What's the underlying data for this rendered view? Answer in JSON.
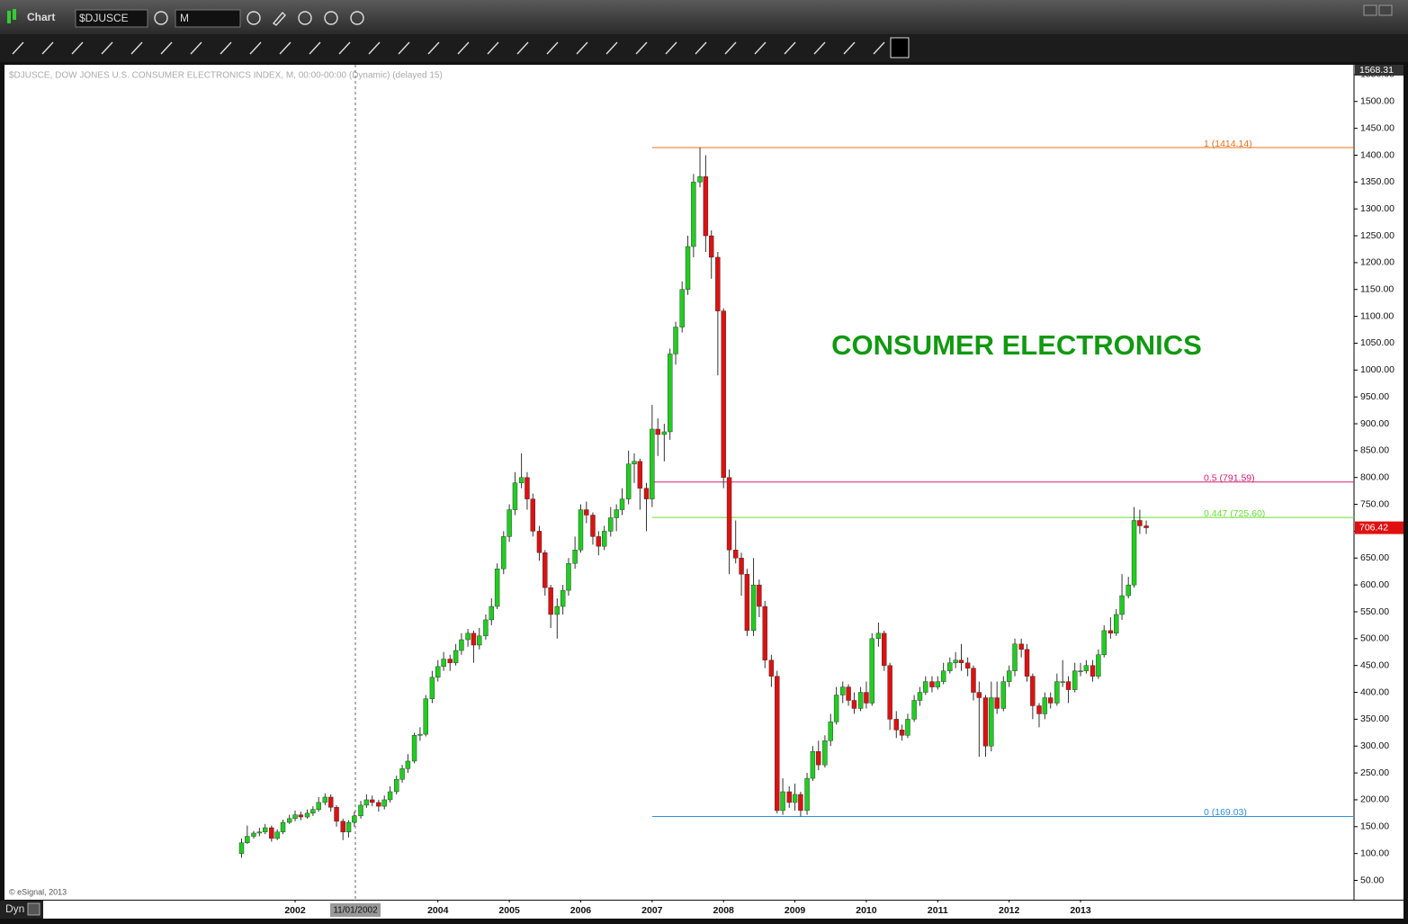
{
  "window": {
    "title": "Chart",
    "symbol": "$DJUSCE",
    "interval": "M",
    "mode": "Dyn"
  },
  "chart_data": {
    "type": "candlestick",
    "subtitle": "$DJUSCE, DOW JONES U.S. CONSUMER ELECTRONICS INDEX, M, 00:00-00:00 (Dynamic) (delayed 15)",
    "annotation": "CONSUMER ELECTRONICS",
    "credit": "© eSignal, 2013",
    "cursor_label": "11/01/2002",
    "up_color": "#22cc22",
    "down_color": "#dd1111",
    "xlim": [
      1997.93,
      2016.83
    ],
    "xticks": [
      2002,
      2004,
      2005,
      2006,
      2007,
      2008,
      2009,
      2010,
      2011,
      2012,
      2013
    ],
    "ylim": [
      14,
      1568.31
    ],
    "yticks": [
      {
        "value": 50,
        "label": "50.00"
      },
      {
        "value": 100,
        "label": "100.00"
      },
      {
        "value": 150,
        "label": "150.00"
      },
      {
        "value": 200,
        "label": "200.00"
      },
      {
        "value": 250,
        "label": "250.00"
      },
      {
        "value": 300,
        "label": "300.00"
      },
      {
        "value": 350,
        "label": "350.00"
      },
      {
        "value": 400,
        "label": "400.00"
      },
      {
        "value": 450,
        "label": "450.00"
      },
      {
        "value": 500,
        "label": "500.00"
      },
      {
        "value": 550,
        "label": "550.00"
      },
      {
        "value": 600,
        "label": "600.00"
      },
      {
        "value": 650,
        "label": "650.00"
      },
      {
        "value": 700,
        "label": "700.00"
      },
      {
        "value": 750,
        "label": "750.00"
      },
      {
        "value": 800,
        "label": "800.00"
      },
      {
        "value": 850,
        "label": "850.00"
      },
      {
        "value": 900,
        "label": "900.00"
      },
      {
        "value": 950,
        "label": "950.00"
      },
      {
        "value": 1000,
        "label": "1000.00"
      },
      {
        "value": 1050,
        "label": "1050.00"
      },
      {
        "value": 1100,
        "label": "1100.00"
      },
      {
        "value": 1150,
        "label": "1150.00"
      },
      {
        "value": 1200,
        "label": "1200.00"
      },
      {
        "value": 1250,
        "label": "1250.00"
      },
      {
        "value": 1300,
        "label": "1300.00"
      },
      {
        "value": 1350,
        "label": "1350.00"
      },
      {
        "value": 1400,
        "label": "1400.00"
      },
      {
        "value": 1450,
        "label": "1450.00"
      },
      {
        "value": 1500,
        "label": "1500.00"
      },
      {
        "value": 1550,
        "label": "1550.00"
      }
    ],
    "levels": [
      {
        "label": "1 (1414.14)",
        "value": 1414.14,
        "color": "#e8701a"
      },
      {
        "label": "0.5 (791.59)",
        "value": 791.59,
        "color": "#d4206e"
      },
      {
        "label": "0.447 (725.60)",
        "value": 725.6,
        "color": "#66dd33"
      },
      {
        "label": "0 (169.03)",
        "value": 169.03,
        "color": "#2f8fd8"
      }
    ],
    "x": [
      2001.25,
      2001.33,
      2001.42,
      2001.5,
      2001.58,
      2001.67,
      2001.75,
      2001.83,
      2001.92,
      2002,
      2002.08,
      2002.17,
      2002.25,
      2002.33,
      2002.42,
      2002.5,
      2002.58,
      2002.67,
      2002.75,
      2002.83,
      2002.92,
      2003,
      2003.08,
      2003.17,
      2003.25,
      2003.33,
      2003.42,
      2003.5,
      2003.58,
      2003.67,
      2003.75,
      2003.83,
      2003.92,
      2004,
      2004.08,
      2004.17,
      2004.25,
      2004.33,
      2004.42,
      2004.5,
      2004.58,
      2004.67,
      2004.75,
      2004.83,
      2004.92,
      2005,
      2005.08,
      2005.17,
      2005.25,
      2005.33,
      2005.42,
      2005.5,
      2005.58,
      2005.67,
      2005.75,
      2005.83,
      2005.92,
      2006,
      2006.08,
      2006.17,
      2006.25,
      2006.33,
      2006.42,
      2006.5,
      2006.58,
      2006.67,
      2006.75,
      2006.83,
      2006.92,
      2007,
      2007.08,
      2007.17,
      2007.25,
      2007.33,
      2007.42,
      2007.5,
      2007.58,
      2007.67,
      2007.75,
      2007.83,
      2007.92,
      2008,
      2008.08,
      2008.17,
      2008.25,
      2008.33,
      2008.42,
      2008.5,
      2008.58,
      2008.67,
      2008.75,
      2008.83,
      2008.92,
      2009,
      2009.08,
      2009.17,
      2009.25,
      2009.33,
      2009.42,
      2009.5,
      2009.58,
      2009.67,
      2009.75,
      2009.83,
      2009.92,
      2010,
      2010.08,
      2010.17,
      2010.25,
      2010.33,
      2010.42,
      2010.5,
      2010.58,
      2010.67,
      2010.75,
      2010.83,
      2010.92,
      2011,
      2011.08,
      2011.17,
      2011.25,
      2011.33,
      2011.42,
      2011.5,
      2011.58,
      2011.67,
      2011.75,
      2011.83,
      2011.92,
      2012,
      2012.08,
      2012.17,
      2012.25,
      2012.33,
      2012.42,
      2012.5,
      2012.58,
      2012.67,
      2012.75,
      2012.83,
      2012.92,
      2013,
      2013.08,
      2013.17,
      2013.25,
      2013.33,
      2013.42,
      2013.5,
      2013.58,
      2013.67,
      2013.75,
      2013.83,
      2013.92
    ],
    "open": [
      100,
      120,
      132,
      138,
      140,
      148,
      128,
      140,
      158,
      165,
      172,
      168,
      175,
      182,
      195,
      205,
      186,
      160,
      140,
      158,
      170,
      190,
      200,
      195,
      188,
      200,
      215,
      238,
      258,
      272,
      320,
      322,
      388,
      428,
      448,
      462,
      455,
      478,
      498,
      510,
      488,
      505,
      535,
      560,
      630,
      690,
      740,
      790,
      800,
      760,
      700,
      660,
      595,
      545,
      560,
      590,
      640,
      665,
      740,
      730,
      690,
      672,
      700,
      725,
      740,
      760,
      825,
      830,
      780,
      760,
      890,
      880,
      885,
      1030,
      1080,
      1150,
      1230,
      1350,
      1360,
      1250,
      1210,
      1110,
      800,
      665,
      650,
      620,
      515,
      600,
      560,
      460,
      430,
      180,
      215,
      195,
      210,
      180,
      240,
      290,
      265,
      310,
      345,
      395,
      410,
      385,
      370,
      400,
      380,
      500,
      510,
      450,
      350,
      330,
      320,
      350,
      385,
      400,
      420,
      410,
      420,
      440,
      455,
      460,
      455,
      445,
      400,
      390,
      300,
      390,
      370,
      420,
      440,
      490,
      480,
      430,
      375,
      360,
      390,
      380,
      420,
      420,
      405,
      440,
      440,
      450,
      430,
      470,
      515,
      510,
      545,
      580,
      600,
      720,
      710
    ],
    "high": [
      128,
      152,
      142,
      148,
      155,
      152,
      145,
      163,
      172,
      180,
      178,
      182,
      188,
      205,
      212,
      210,
      190,
      165,
      162,
      178,
      198,
      210,
      208,
      200,
      208,
      225,
      245,
      265,
      285,
      325,
      335,
      395,
      440,
      460,
      475,
      470,
      490,
      510,
      518,
      515,
      520,
      545,
      575,
      640,
      700,
      750,
      810,
      845,
      810,
      770,
      710,
      665,
      600,
      575,
      600,
      650,
      690,
      750,
      755,
      735,
      700,
      710,
      745,
      750,
      780,
      850,
      845,
      835,
      790,
      935,
      910,
      900,
      1040,
      1090,
      1165,
      1250,
      1365,
      1414.14,
      1400,
      1260,
      1220,
      1115,
      815,
      720,
      660,
      630,
      650,
      610,
      570,
      470,
      440,
      240,
      225,
      230,
      215,
      250,
      300,
      310,
      320,
      360,
      410,
      420,
      415,
      400,
      410,
      420,
      510,
      530,
      515,
      455,
      365,
      340,
      360,
      395,
      410,
      430,
      430,
      430,
      455,
      465,
      475,
      490,
      465,
      450,
      420,
      395,
      420,
      420,
      430,
      450,
      500,
      500,
      490,
      435,
      380,
      400,
      400,
      435,
      460,
      430,
      455,
      455,
      460,
      460,
      480,
      525,
      540,
      555,
      620,
      615,
      745,
      740,
      720
    ],
    "low": [
      92,
      118,
      128,
      132,
      136,
      122,
      125,
      136,
      155,
      160,
      162,
      165,
      170,
      178,
      190,
      178,
      150,
      125,
      130,
      150,
      165,
      185,
      188,
      178,
      182,
      195,
      210,
      232,
      250,
      268,
      310,
      318,
      380,
      420,
      440,
      440,
      450,
      470,
      485,
      455,
      480,
      498,
      525,
      555,
      620,
      680,
      730,
      780,
      740,
      690,
      645,
      580,
      520,
      500,
      545,
      580,
      630,
      660,
      715,
      675,
      655,
      665,
      690,
      700,
      730,
      750,
      790,
      740,
      700,
      745,
      840,
      830,
      870,
      1010,
      1070,
      1140,
      1210,
      1340,
      1220,
      1170,
      990,
      780,
      620,
      640,
      580,
      505,
      505,
      540,
      445,
      410,
      175,
      172,
      185,
      180,
      169.03,
      172,
      235,
      255,
      260,
      300,
      340,
      380,
      375,
      360,
      365,
      370,
      375,
      485,
      440,
      330,
      315,
      310,
      315,
      345,
      375,
      395,
      400,
      405,
      415,
      435,
      445,
      440,
      430,
      385,
      280,
      280,
      290,
      360,
      365,
      410,
      430,
      465,
      420,
      350,
      335,
      350,
      370,
      375,
      410,
      380,
      400,
      430,
      435,
      420,
      425,
      465,
      500,
      505,
      535,
      575,
      595,
      695,
      695
    ],
    "close": [
      120,
      132,
      138,
      140,
      148,
      128,
      140,
      158,
      165,
      172,
      168,
      175,
      182,
      195,
      205,
      186,
      160,
      140,
      158,
      170,
      190,
      200,
      195,
      188,
      200,
      215,
      238,
      258,
      272,
      320,
      322,
      388,
      428,
      448,
      462,
      455,
      478,
      498,
      510,
      488,
      505,
      535,
      560,
      630,
      690,
      740,
      790,
      800,
      760,
      700,
      660,
      595,
      545,
      560,
      590,
      640,
      665,
      740,
      730,
      690,
      672,
      700,
      725,
      740,
      760,
      825,
      830,
      780,
      760,
      890,
      880,
      885,
      1030,
      1080,
      1150,
      1230,
      1350,
      1360,
      1250,
      1210,
      1110,
      800,
      665,
      650,
      620,
      515,
      600,
      560,
      460,
      430,
      180,
      215,
      195,
      210,
      180,
      240,
      290,
      265,
      310,
      345,
      395,
      410,
      385,
      370,
      400,
      380,
      500,
      510,
      450,
      350,
      330,
      320,
      350,
      385,
      400,
      420,
      410,
      420,
      440,
      455,
      460,
      455,
      445,
      400,
      390,
      300,
      390,
      370,
      420,
      440,
      490,
      480,
      430,
      375,
      360,
      390,
      380,
      420,
      420,
      405,
      440,
      440,
      450,
      430,
      470,
      515,
      510,
      545,
      580,
      600,
      720,
      710,
      706.42
    ]
  }
}
